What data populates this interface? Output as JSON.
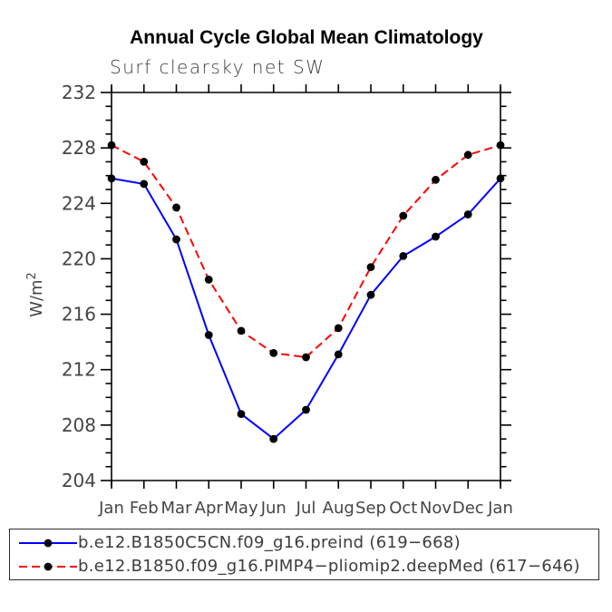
{
  "chart_data": {
    "type": "line",
    "title": "Annual Cycle Global Mean Climatology",
    "subtitle": "Surf clearsky net SW",
    "ylabel": "W/m2",
    "ylabel_display": {
      "base": "W/m",
      "superscript": "2"
    },
    "categories": [
      "Jan",
      "Feb",
      "Mar",
      "Apr",
      "May",
      "Jun",
      "Jul",
      "Aug",
      "Sep",
      "Oct",
      "Nov",
      "Dec",
      "Jan"
    ],
    "series": [
      {
        "name": "b.e12.B1850C5CN.f09_g16.preind (619−668)",
        "color": "#0000ff",
        "line_style": "solid",
        "marker": "filled-circle",
        "marker_color": "#000000",
        "values": [
          225.8,
          225.4,
          221.4,
          214.5,
          208.8,
          207.0,
          209.1,
          213.1,
          217.4,
          220.2,
          221.6,
          223.2,
          225.8
        ]
      },
      {
        "name": "b.e12.B1850.f09_g16.PIMP4−pliomip2.deepMed (617−646)",
        "color": "#ff0000",
        "line_style": "dashed",
        "marker": "filled-circle",
        "marker_color": "#000000",
        "values": [
          228.2,
          227.0,
          223.7,
          218.5,
          214.8,
          213.2,
          212.9,
          215.0,
          219.4,
          223.1,
          225.7,
          227.5,
          228.2
        ]
      }
    ],
    "ylim": [
      204,
      232
    ],
    "ytick_major_interval": 4,
    "ytick_minor_interval": 1,
    "ytick_labels": [
      "204",
      "208",
      "212",
      "216",
      "220",
      "224",
      "228",
      "232"
    ],
    "grid": false,
    "legend_position": "bottom-box",
    "axis_color": "#000000",
    "tick_label_color": "#454545"
  }
}
